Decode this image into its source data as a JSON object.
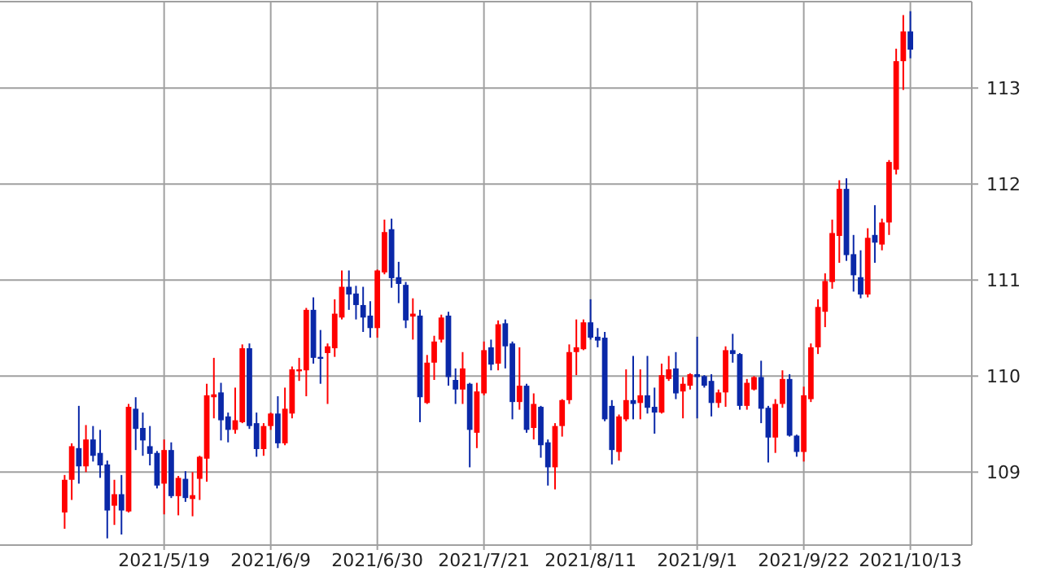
{
  "chart_data": {
    "type": "candlestick",
    "categories": [
      null,
      null,
      null,
      null,
      null,
      null,
      null,
      null,
      null,
      null,
      null,
      null,
      null,
      null,
      "2021/5/19",
      null,
      null,
      null,
      null,
      null,
      null,
      null,
      null,
      null,
      null,
      null,
      null,
      null,
      null,
      "2021/6/9",
      null,
      null,
      null,
      null,
      null,
      null,
      null,
      null,
      null,
      null,
      null,
      null,
      null,
      null,
      "2021/6/30",
      null,
      null,
      null,
      null,
      null,
      null,
      null,
      null,
      null,
      null,
      null,
      null,
      null,
      null,
      "2021/7/21",
      null,
      null,
      null,
      null,
      null,
      null,
      null,
      null,
      null,
      null,
      null,
      null,
      null,
      null,
      "2021/8/11",
      null,
      null,
      null,
      null,
      null,
      null,
      null,
      null,
      null,
      null,
      null,
      null,
      null,
      null,
      "2021/9/1",
      null,
      null,
      null,
      null,
      null,
      null,
      null,
      null,
      null,
      null,
      null,
      null,
      null,
      null,
      "2021/9/22",
      null,
      null,
      null,
      null,
      null,
      null,
      null,
      null,
      null,
      null,
      null,
      null,
      null,
      null,
      "2021/10/13"
    ],
    "ohlc": [
      [
        108.58,
        108.97,
        108.41,
        108.92
      ],
      [
        108.92,
        109.3,
        108.71,
        109.27
      ],
      [
        109.25,
        109.69,
        108.88,
        109.06
      ],
      [
        109.06,
        109.49,
        109.0,
        109.34
      ],
      [
        109.34,
        109.48,
        109.11,
        109.17
      ],
      [
        109.2,
        109.44,
        108.94,
        109.07
      ],
      [
        109.08,
        109.12,
        108.31,
        108.6
      ],
      [
        108.65,
        108.92,
        108.45,
        108.77
      ],
      [
        108.77,
        108.97,
        108.35,
        108.6
      ],
      [
        108.59,
        109.71,
        108.58,
        109.68
      ],
      [
        109.66,
        109.78,
        109.23,
        109.45
      ],
      [
        109.46,
        109.62,
        109.17,
        109.33
      ],
      [
        109.27,
        109.48,
        109.07,
        109.19
      ],
      [
        109.2,
        109.22,
        108.83,
        108.86
      ],
      [
        108.88,
        109.34,
        108.56,
        109.23
      ],
      [
        109.23,
        109.31,
        108.73,
        108.75
      ],
      [
        108.75,
        108.96,
        108.55,
        108.94
      ],
      [
        108.93,
        109.01,
        108.69,
        108.73
      ],
      [
        108.72,
        109.0,
        108.54,
        108.76
      ],
      [
        108.93,
        109.17,
        108.71,
        109.16
      ],
      [
        109.14,
        109.92,
        108.9,
        109.8
      ],
      [
        109.78,
        110.19,
        109.56,
        109.81
      ],
      [
        109.83,
        109.93,
        109.33,
        109.54
      ],
      [
        109.58,
        109.62,
        109.31,
        109.44
      ],
      [
        109.44,
        109.88,
        109.4,
        109.54
      ],
      [
        109.52,
        110.33,
        109.51,
        110.29
      ],
      [
        110.29,
        110.34,
        109.45,
        109.48
      ],
      [
        109.51,
        109.62,
        109.16,
        109.24
      ],
      [
        109.24,
        109.51,
        109.17,
        109.48
      ],
      [
        109.48,
        109.62,
        109.44,
        109.61
      ],
      [
        109.61,
        109.79,
        109.25,
        109.3
      ],
      [
        109.3,
        109.88,
        109.28,
        109.66
      ],
      [
        109.61,
        110.1,
        109.56,
        110.07
      ],
      [
        110.05,
        110.19,
        109.95,
        110.07
      ],
      [
        110.06,
        110.71,
        109.79,
        110.69
      ],
      [
        110.69,
        110.82,
        110.13,
        110.19
      ],
      [
        110.2,
        110.48,
        109.92,
        110.18
      ],
      [
        110.24,
        110.34,
        109.71,
        110.31
      ],
      [
        110.29,
        110.8,
        110.2,
        110.65
      ],
      [
        110.61,
        111.1,
        110.59,
        110.93
      ],
      [
        110.93,
        111.1,
        110.69,
        110.85
      ],
      [
        110.86,
        110.94,
        110.59,
        110.74
      ],
      [
        110.74,
        110.93,
        110.46,
        110.61
      ],
      [
        110.63,
        110.78,
        110.4,
        110.5
      ],
      [
        110.5,
        111.11,
        110.4,
        111.1
      ],
      [
        111.08,
        111.63,
        111.06,
        111.5
      ],
      [
        111.53,
        111.64,
        110.92,
        111.02
      ],
      [
        111.03,
        111.19,
        110.76,
        110.96
      ],
      [
        110.95,
        110.98,
        110.5,
        110.58
      ],
      [
        110.62,
        110.81,
        110.38,
        110.65
      ],
      [
        110.63,
        110.69,
        109.52,
        109.78
      ],
      [
        109.72,
        110.22,
        109.71,
        110.14
      ],
      [
        110.14,
        110.42,
        109.96,
        110.36
      ],
      [
        110.38,
        110.64,
        110.35,
        110.61
      ],
      [
        110.63,
        110.67,
        109.9,
        109.99
      ],
      [
        109.96,
        110.08,
        109.71,
        109.86
      ],
      [
        109.86,
        110.25,
        109.71,
        110.08
      ],
      [
        109.92,
        109.93,
        109.05,
        109.44
      ],
      [
        109.41,
        109.93,
        109.25,
        109.84
      ],
      [
        109.82,
        110.36,
        109.8,
        110.27
      ],
      [
        110.3,
        110.38,
        110.06,
        110.12
      ],
      [
        110.13,
        110.58,
        110.06,
        110.54
      ],
      [
        110.55,
        110.59,
        110.08,
        110.31
      ],
      [
        110.34,
        110.36,
        109.55,
        109.73
      ],
      [
        109.73,
        110.3,
        109.65,
        109.9
      ],
      [
        109.9,
        109.92,
        109.41,
        109.44
      ],
      [
        109.46,
        109.82,
        109.34,
        109.71
      ],
      [
        109.68,
        109.69,
        109.15,
        109.28
      ],
      [
        109.31,
        109.34,
        108.86,
        109.05
      ],
      [
        109.05,
        109.51,
        108.82,
        109.48
      ],
      [
        109.48,
        109.76,
        109.37,
        109.75
      ],
      [
        109.75,
        110.33,
        109.71,
        110.25
      ],
      [
        110.25,
        110.59,
        110.01,
        110.3
      ],
      [
        110.28,
        110.59,
        110.27,
        110.56
      ],
      [
        110.56,
        110.8,
        110.38,
        110.4
      ],
      [
        110.41,
        110.5,
        110.3,
        110.37
      ],
      [
        110.4,
        110.46,
        109.53,
        109.55
      ],
      [
        109.69,
        109.75,
        109.08,
        109.23
      ],
      [
        109.21,
        109.6,
        109.12,
        109.58
      ],
      [
        109.55,
        110.07,
        109.53,
        109.75
      ],
      [
        109.75,
        110.21,
        109.55,
        109.71
      ],
      [
        109.72,
        110.07,
        109.55,
        109.8
      ],
      [
        109.8,
        110.21,
        109.61,
        109.67
      ],
      [
        109.68,
        109.88,
        109.4,
        109.62
      ],
      [
        109.62,
        110.13,
        109.61,
        110.01
      ],
      [
        109.97,
        110.21,
        109.95,
        110.07
      ],
      [
        110.08,
        110.25,
        109.76,
        109.82
      ],
      [
        109.84,
        109.99,
        109.56,
        109.92
      ],
      [
        109.9,
        110.03,
        109.86,
        110.02
      ],
      [
        110.02,
        110.41,
        109.56,
        109.99
      ],
      [
        110.0,
        110.01,
        109.88,
        109.9
      ],
      [
        109.95,
        110.02,
        109.58,
        109.72
      ],
      [
        109.72,
        109.86,
        109.67,
        109.83
      ],
      [
        109.83,
        110.31,
        109.68,
        110.27
      ],
      [
        110.27,
        110.44,
        110.14,
        110.23
      ],
      [
        110.23,
        110.24,
        109.65,
        109.69
      ],
      [
        109.69,
        109.97,
        109.65,
        109.93
      ],
      [
        109.86,
        110.0,
        109.85,
        109.99
      ],
      [
        109.99,
        110.16,
        109.51,
        109.66
      ],
      [
        109.67,
        109.69,
        109.1,
        109.36
      ],
      [
        109.36,
        109.76,
        109.2,
        109.71
      ],
      [
        109.71,
        110.06,
        109.67,
        109.97
      ],
      [
        109.97,
        110.02,
        109.37,
        109.38
      ],
      [
        109.38,
        109.39,
        109.16,
        109.21
      ],
      [
        109.21,
        109.89,
        109.11,
        109.8
      ],
      [
        109.76,
        110.34,
        109.73,
        110.3
      ],
      [
        110.3,
        110.8,
        110.23,
        110.72
      ],
      [
        110.67,
        111.07,
        110.51,
        110.99
      ],
      [
        110.98,
        111.63,
        110.91,
        111.49
      ],
      [
        111.46,
        112.04,
        111.18,
        111.95
      ],
      [
        111.95,
        112.06,
        111.2,
        111.26
      ],
      [
        111.27,
        111.47,
        110.88,
        111.05
      ],
      [
        111.03,
        111.31,
        110.81,
        110.85
      ],
      [
        110.85,
        111.54,
        110.82,
        111.44
      ],
      [
        111.47,
        111.78,
        111.18,
        111.39
      ],
      [
        111.37,
        111.64,
        111.31,
        111.6
      ],
      [
        111.6,
        112.25,
        111.47,
        112.23
      ],
      [
        112.15,
        113.41,
        112.1,
        113.28
      ],
      [
        113.28,
        113.76,
        112.98,
        113.59
      ],
      [
        113.59,
        113.8,
        113.31,
        113.4
      ]
    ],
    "colors": [
      "#ff0000",
      "#ff0000",
      "#0a28a8",
      "#ff0000",
      "#0a28a8",
      "#0a28a8",
      "#0a28a8",
      "#ff0000",
      "#0a28a8",
      "#ff0000",
      "#0a28a8",
      "#0a28a8",
      "#0a28a8",
      "#0a28a8",
      "#ff0000",
      "#0a28a8",
      "#ff0000",
      "#0a28a8",
      "#ff0000",
      "#ff0000",
      "#ff0000",
      "#ff0000",
      "#0a28a8",
      "#0a28a8",
      "#ff0000",
      "#ff0000",
      "#0a28a8",
      "#0a28a8",
      "#ff0000",
      "#ff0000",
      "#0a28a8",
      "#ff0000",
      "#ff0000",
      "#ff0000",
      "#ff0000",
      "#0a28a8",
      "#0a28a8",
      "#ff0000",
      "#ff0000",
      "#ff0000",
      "#0a28a8",
      "#0a28a8",
      "#0a28a8",
      "#0a28a8",
      "#ff0000",
      "#ff0000",
      "#0a28a8",
      "#0a28a8",
      "#0a28a8",
      "#ff0000",
      "#0a28a8",
      "#ff0000",
      "#ff0000",
      "#ff0000",
      "#0a28a8",
      "#0a28a8",
      "#ff0000",
      "#0a28a8",
      "#ff0000",
      "#ff0000",
      "#0a28a8",
      "#ff0000",
      "#0a28a8",
      "#0a28a8",
      "#ff0000",
      "#0a28a8",
      "#ff0000",
      "#0a28a8",
      "#0a28a8",
      "#ff0000",
      "#ff0000",
      "#ff0000",
      "#ff0000",
      "#ff0000",
      "#0a28a8",
      "#0a28a8",
      "#0a28a8",
      "#0a28a8",
      "#ff0000",
      "#ff0000",
      "#0a28a8",
      "#ff0000",
      "#0a28a8",
      "#0a28a8",
      "#ff0000",
      "#ff0000",
      "#0a28a8",
      "#ff0000",
      "#ff0000",
      "#0a28a8",
      "#0a28a8",
      "#0a28a8",
      "#ff0000",
      "#ff0000",
      "#0a28a8",
      "#0a28a8",
      "#ff0000",
      "#ff0000",
      "#0a28a8",
      "#0a28a8",
      "#ff0000",
      "#ff0000",
      "#0a28a8",
      "#0a28a8",
      "#ff0000",
      "#ff0000",
      "#ff0000",
      "#ff0000",
      "#ff0000",
      "#ff0000",
      "#0a28a8",
      "#0a28a8",
      "#0a28a8",
      "#ff0000",
      "#0a28a8",
      "#ff0000",
      "#ff0000",
      "#ff0000",
      "#ff0000",
      "#0a28a8"
    ],
    "ylim": [
      108.24,
      113.9
    ],
    "yticks": [
      109,
      110,
      111,
      112,
      113
    ],
    "grid": true
  }
}
